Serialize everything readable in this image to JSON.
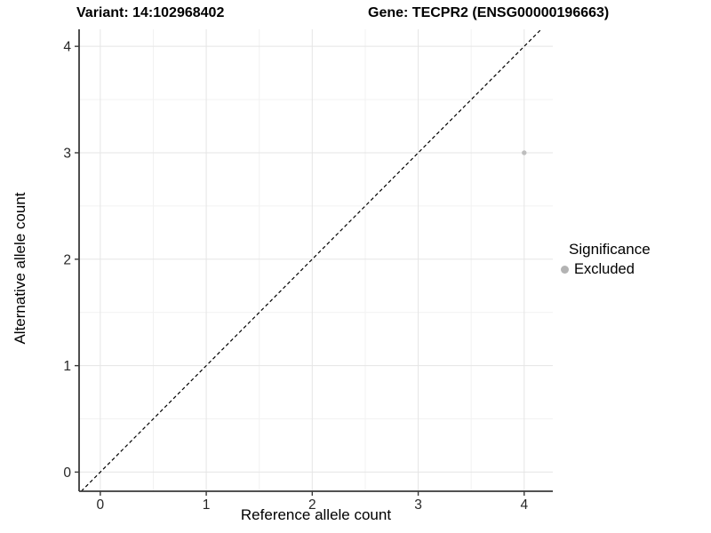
{
  "titles": {
    "variant": "Variant: 14:102968402",
    "gene": "Gene: TECPR2 (ENSG00000196663)"
  },
  "axes": {
    "x_label": "Reference allele count",
    "y_label": "Alternative allele count"
  },
  "legend": {
    "title": "Significance",
    "items": [
      {
        "label": "Excluded",
        "color": "#b3b3b3"
      }
    ]
  },
  "chart_data": {
    "type": "scatter",
    "title_left": "Variant: 14:102968402",
    "title_right": "Gene: TECPR2 (ENSG00000196663)",
    "xlabel": "Reference allele count",
    "ylabel": "Alternative allele count",
    "xlim": [
      -0.2,
      4.27
    ],
    "ylim": [
      -0.18,
      4.16
    ],
    "x_ticks": [
      0,
      1,
      2,
      3,
      4
    ],
    "y_ticks": [
      0,
      1,
      2,
      3,
      4
    ],
    "grid": {
      "major": true,
      "minor": true,
      "legend_position": "right"
    },
    "points": [
      {
        "x": 4,
        "y": 3,
        "series": "Excluded"
      }
    ],
    "reference_line": {
      "type": "identity y=x",
      "style": "dashed",
      "color": "#000000"
    },
    "colors": {
      "axis": "#3a3a3a",
      "major_grid": "#e5e5e5",
      "minor_grid": "#f2f2f2",
      "point": "#bebebe",
      "background": "#ffffff"
    }
  }
}
